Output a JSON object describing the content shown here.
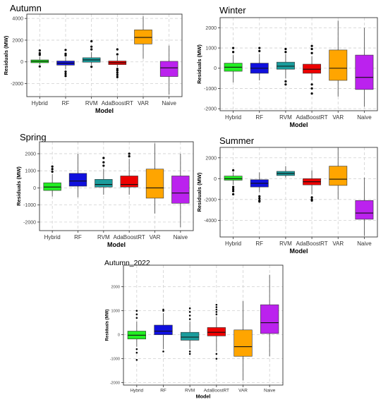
{
  "chart_data": [
    {
      "type": "boxplot",
      "title": "Autumn",
      "xlabel": "Model",
      "ylabel": "Residuals (MW)",
      "ylim": [
        -3200,
        4400
      ],
      "yticks": [
        -2000,
        0,
        2000,
        4000
      ],
      "ytick_labels": [
        "-2000",
        "0",
        "2000",
        "4000"
      ],
      "grid": true,
      "categories": [
        "Hybrid",
        "RF",
        "RVM",
        "AdaBoostRT",
        "VAR",
        "Naive"
      ],
      "boxes": [
        {
          "min": -250,
          "q1": -80,
          "median": 50,
          "q3": 180,
          "max": 480,
          "outliers": [
            650,
            800,
            1050,
            -420
          ]
        },
        {
          "min": -700,
          "q1": -300,
          "median": -120,
          "q3": 80,
          "max": 450,
          "outliers": [
            600,
            750,
            1100,
            -900,
            -1100,
            -1300
          ]
        },
        {
          "min": -300,
          "q1": -30,
          "median": 180,
          "q3": 380,
          "max": 900,
          "outliers": [
            1150,
            1400,
            1900,
            -450
          ]
        },
        {
          "min": -500,
          "q1": -250,
          "median": -80,
          "q3": 80,
          "max": 550,
          "outliers": [
            700,
            1150,
            -650,
            -800,
            -1000,
            -1200,
            -1400
          ]
        },
        {
          "min": 300,
          "q1": 1650,
          "median": 2250,
          "q3": 2950,
          "max": 4200,
          "outliers": []
        },
        {
          "min": -3000,
          "q1": -1350,
          "median": -550,
          "q3": 50,
          "max": 1500,
          "outliers": []
        }
      ],
      "colors": [
        "#22ee22",
        "#1010dd",
        "#1a9c9c",
        "#ee0000",
        "#ffa500",
        "#bb22ee"
      ]
    },
    {
      "type": "boxplot",
      "title": "Winter",
      "xlabel": "Model",
      "ylabel": "Residuals (MW)",
      "ylim": [
        -2100,
        2500
      ],
      "yticks": [
        -2000,
        -1000,
        0,
        1000,
        2000
      ],
      "ytick_labels": [
        "-2000",
        "-1000",
        "0",
        "1000",
        "2000"
      ],
      "grid": true,
      "categories": [
        "Hybrid",
        "RF",
        "RVM",
        "AdaBoostRT",
        "VAR",
        "Naive"
      ],
      "boxes": [
        {
          "min": -700,
          "q1": -150,
          "median": 50,
          "q3": 250,
          "max": 650,
          "outliers": [
            800,
            1000
          ]
        },
        {
          "min": -600,
          "q1": -250,
          "median": 0,
          "q3": 250,
          "max": 700,
          "outliers": [
            850,
            1000
          ]
        },
        {
          "min": -500,
          "q1": -50,
          "median": 100,
          "q3": 300,
          "max": 700,
          "outliers": [
            800,
            950,
            -650,
            -800
          ]
        },
        {
          "min": -600,
          "q1": -250,
          "median": -50,
          "q3": 200,
          "max": 600,
          "outliers": [
            750,
            950,
            1100,
            -800,
            -1000,
            -1250
          ]
        },
        {
          "min": -1400,
          "q1": -600,
          "median": 0,
          "q3": 900,
          "max": 2350,
          "outliers": []
        },
        {
          "min": -1900,
          "q1": -1050,
          "median": -450,
          "q3": 650,
          "max": 2000,
          "outliers": []
        }
      ],
      "colors": [
        "#22ee22",
        "#1010dd",
        "#1a9c9c",
        "#ee0000",
        "#ffa500",
        "#bb22ee"
      ]
    },
    {
      "type": "boxplot",
      "title": "Spring",
      "xlabel": "Model",
      "ylabel": "Residuals (MW)",
      "ylim": [
        -2500,
        2700
      ],
      "yticks": [
        -2000,
        -1000,
        0,
        1000,
        2000
      ],
      "ytick_labels": [
        "-2000",
        "-1000",
        "0",
        "1000",
        "2000"
      ],
      "grid": true,
      "categories": [
        "Hybrid",
        "RF",
        "RVM",
        "AdaBoostRT",
        "VAR",
        "Naive"
      ],
      "boxes": [
        {
          "min": -500,
          "q1": -150,
          "median": 50,
          "q3": 300,
          "max": 800,
          "outliers": [
            950,
            1100,
            1250
          ]
        },
        {
          "min": -550,
          "q1": 100,
          "median": 400,
          "q3": 850,
          "max": 2000,
          "outliers": []
        },
        {
          "min": -400,
          "q1": 50,
          "median": 200,
          "q3": 500,
          "max": 1100,
          "outliers": [
            1300,
            1500,
            1750
          ]
        },
        {
          "min": -400,
          "q1": 50,
          "median": 200,
          "q3": 700,
          "max": 1700,
          "outliers": [
            1850,
            2000
          ]
        },
        {
          "min": -1500,
          "q1": -600,
          "median": 0,
          "q3": 1100,
          "max": 2600,
          "outliers": []
        },
        {
          "min": -2300,
          "q1": -900,
          "median": -300,
          "q3": 700,
          "max": 2000,
          "outliers": []
        }
      ],
      "colors": [
        "#22ee22",
        "#1010dd",
        "#1a9c9c",
        "#ee0000",
        "#ffa500",
        "#bb22ee"
      ]
    },
    {
      "type": "boxplot",
      "title": "Summer",
      "xlabel": "Model",
      "ylabel": "Residuals (MW)",
      "ylim": [
        -5600,
        3000
      ],
      "yticks": [
        -4000,
        -2000,
        0,
        2000
      ],
      "ytick_labels": [
        "-4000",
        "-2000",
        "0",
        "2000"
      ],
      "grid": true,
      "categories": [
        "Hybrid",
        "RF",
        "RVM",
        "AdaBoostRT",
        "VAR",
        "Naive"
      ],
      "boxes": [
        {
          "min": -600,
          "q1": -150,
          "median": 0,
          "q3": 250,
          "max": 600,
          "outliers": [
            800,
            -800,
            -1000,
            -1200,
            -1500
          ]
        },
        {
          "min": -1300,
          "q1": -800,
          "median": -450,
          "q3": -100,
          "max": 600,
          "outliers": [
            -1700,
            -1900,
            -2100,
            -2200
          ]
        },
        {
          "min": 100,
          "q1": 300,
          "median": 500,
          "q3": 700,
          "max": 1200,
          "outliers": []
        },
        {
          "min": -1500,
          "q1": -600,
          "median": -300,
          "q3": 0,
          "max": 800,
          "outliers": [
            -1800,
            -2000,
            -2100
          ]
        },
        {
          "min": -2000,
          "q1": -650,
          "median": -50,
          "q3": 1200,
          "max": 3000,
          "outliers": []
        },
        {
          "min": -5500,
          "q1": -3900,
          "median": -3300,
          "q3": -2100,
          "max": 100,
          "outliers": []
        }
      ],
      "colors": [
        "#22ee22",
        "#1010dd",
        "#1a9c9c",
        "#ee0000",
        "#ffa500",
        "#bb22ee"
      ]
    },
    {
      "type": "boxplot",
      "title": "Autumn_2022",
      "xlabel": "Model",
      "ylabel": "Residuals (MW)",
      "ylim": [
        -2100,
        2900
      ],
      "yticks": [
        -2000,
        -1000,
        0,
        1000,
        2000
      ],
      "ytick_labels": [
        "-2000",
        "-1000",
        "0",
        "1000",
        "2000"
      ],
      "grid": true,
      "categories": [
        "Hybrid",
        "RF",
        "RVM",
        "AdaBoostRT",
        "VAR",
        "Naive"
      ],
      "boxes": [
        {
          "min": -500,
          "q1": -180,
          "median": -20,
          "q3": 150,
          "max": 550,
          "outliers": [
            700,
            850,
            1000,
            -600,
            -750,
            -1050
          ]
        },
        {
          "min": -600,
          "q1": 0,
          "median": 150,
          "q3": 400,
          "max": 900,
          "outliers": [
            1000,
            1050,
            -700
          ]
        },
        {
          "min": -600,
          "q1": -230,
          "median": -100,
          "q3": 100,
          "max": 550,
          "outliers": [
            650,
            800,
            950,
            1100,
            -700,
            -800
          ]
        },
        {
          "min": -700,
          "q1": -50,
          "median": 100,
          "q3": 300,
          "max": 750,
          "outliers": [
            850,
            950,
            1050,
            1150,
            1250,
            -800,
            -1000
          ]
        },
        {
          "min": -1900,
          "q1": -900,
          "median": -500,
          "q3": 200,
          "max": 1400,
          "outliers": []
        },
        {
          "min": -900,
          "q1": 50,
          "median": 500,
          "q3": 1250,
          "max": 2500,
          "outliers": []
        }
      ],
      "colors": [
        "#22ee22",
        "#1010dd",
        "#1a9c9c",
        "#ee0000",
        "#ffa500",
        "#bb22ee"
      ]
    }
  ]
}
